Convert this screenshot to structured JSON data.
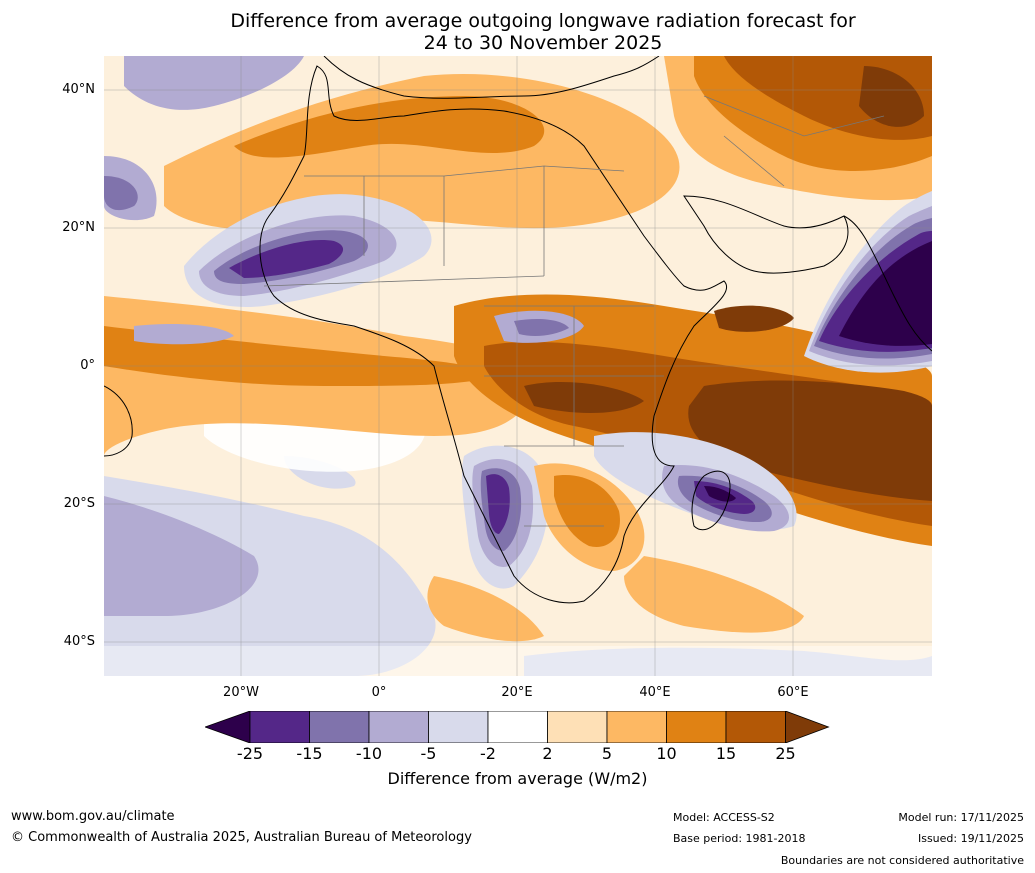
{
  "title": {
    "line1": "Difference from average outgoing longwave radiation forecast for",
    "line2": "24 to 30 November 2025"
  },
  "map": {
    "lat_labels": [
      "40°N",
      "20°N",
      "0°",
      "20°S",
      "40°S"
    ],
    "lon_labels": [
      "20°W",
      "0°",
      "20°E",
      "40°E",
      "60°E"
    ]
  },
  "colorbar": {
    "ticks": [
      "-25",
      "-15",
      "-10",
      "-5",
      "-2",
      "2",
      "5",
      "10",
      "15",
      "25"
    ],
    "colors": [
      "#2d004b",
      "#542788",
      "#8073ac",
      "#b2abd2",
      "#d8daeb",
      "#ffffff",
      "#fee0b6",
      "#fdb863",
      "#e08214",
      "#b35806",
      "#7f3b08"
    ],
    "label": "Difference from average (W/m2)"
  },
  "footer": {
    "website": "www.bom.gov.au/climate",
    "copyright": "© Commonwealth of Australia 2025, Australian Bureau of Meteorology",
    "model": "Model: ACCESS-S2",
    "base_period": "Base period: 1981-2018",
    "model_run": "Model run: 17/11/2025",
    "issued": "Issued: 19/11/2025",
    "boundaries": "Boundaries are not considered authoritative"
  }
}
